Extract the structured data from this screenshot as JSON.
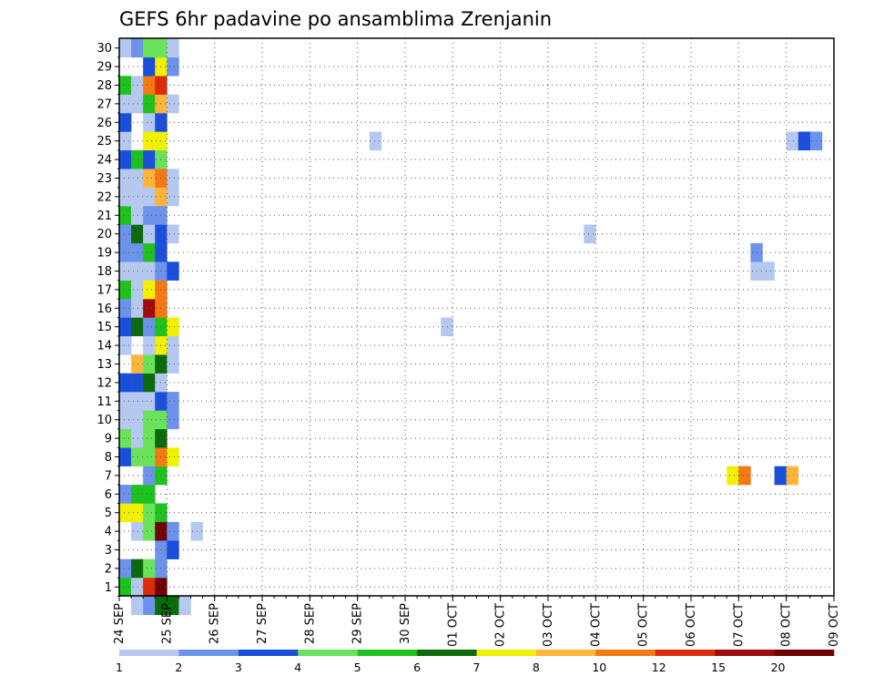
{
  "chart_data": {
    "type": "heatmap",
    "title": "GEFS 6hr padavine po ansamblima Zrenjanin",
    "xlabel": "",
    "ylabel": "",
    "x_start": "24 SEP",
    "x_step_hours": 6,
    "x_tick_labels": [
      "24 SEP",
      "25 SEP",
      "26 SEP",
      "27 SEP",
      "28 SEP",
      "29 SEP",
      "30 SEP",
      "01 OCT",
      "02 OCT",
      "03 OCT",
      "04 OCT",
      "05 OCT",
      "06 OCT",
      "07 OCT",
      "08 OCT",
      "09 OCT"
    ],
    "y_tick_labels": [
      "1",
      "2",
      "3",
      "4",
      "5",
      "6",
      "7",
      "8",
      "9",
      "10",
      "11",
      "12",
      "13",
      "14",
      "15",
      "16",
      "17",
      "18",
      "19",
      "20",
      "21",
      "22",
      "23",
      "24",
      "25",
      "26",
      "27",
      "28",
      "29",
      "30"
    ],
    "y_range": [
      0,
      30
    ],
    "grid": true,
    "legend": {
      "placement": "bottom",
      "thresholds": [
        "1",
        "2",
        "3",
        "4",
        "5",
        "6",
        "7",
        "8",
        "10",
        "12",
        "15",
        "20"
      ],
      "colors": [
        "#b4c8f0",
        "#6c92ec",
        "#1a4fdc",
        "#6ae25a",
        "#1ec11e",
        "#0b6a0b",
        "#f0f000",
        "#ffb43c",
        "#f47814",
        "#dc2a0a",
        "#a00a0a",
        "#6e0000"
      ]
    },
    "cells": [
      {
        "ens": 0,
        "t": 1,
        "c": 1
      },
      {
        "ens": 0,
        "t": 2,
        "c": 2
      },
      {
        "ens": 0,
        "t": 3,
        "c": 6
      },
      {
        "ens": 0,
        "t": 4,
        "c": 6
      },
      {
        "ens": 0,
        "t": 5,
        "c": 1
      },
      {
        "ens": 1,
        "t": 0,
        "c": 5
      },
      {
        "ens": 1,
        "t": 1,
        "c": 1
      },
      {
        "ens": 1,
        "t": 2,
        "c": 10
      },
      {
        "ens": 1,
        "t": 3,
        "c": 12
      },
      {
        "ens": 2,
        "t": 0,
        "c": 2
      },
      {
        "ens": 2,
        "t": 1,
        "c": 6
      },
      {
        "ens": 2,
        "t": 2,
        "c": 4
      },
      {
        "ens": 2,
        "t": 3,
        "c": 2
      },
      {
        "ens": 3,
        "t": 3,
        "c": 2
      },
      {
        "ens": 3,
        "t": 4,
        "c": 3
      },
      {
        "ens": 4,
        "t": 1,
        "c": 1
      },
      {
        "ens": 4,
        "t": 2,
        "c": 4
      },
      {
        "ens": 4,
        "t": 3,
        "c": 12
      },
      {
        "ens": 4,
        "t": 4,
        "c": 2
      },
      {
        "ens": 4,
        "t": 6,
        "c": 1
      },
      {
        "ens": 5,
        "t": 0,
        "c": 7
      },
      {
        "ens": 5,
        "t": 1,
        "c": 7
      },
      {
        "ens": 5,
        "t": 2,
        "c": 4
      },
      {
        "ens": 5,
        "t": 3,
        "c": 5
      },
      {
        "ens": 6,
        "t": 0,
        "c": 2
      },
      {
        "ens": 6,
        "t": 1,
        "c": 5
      },
      {
        "ens": 6,
        "t": 2,
        "c": 5
      },
      {
        "ens": 7,
        "t": 2,
        "c": 2
      },
      {
        "ens": 7,
        "t": 3,
        "c": 5
      },
      {
        "ens": 7,
        "t": 51,
        "c": 7
      },
      {
        "ens": 7,
        "t": 52,
        "c": 9
      },
      {
        "ens": 7,
        "t": 55,
        "c": 3
      },
      {
        "ens": 7,
        "t": 56,
        "c": 8
      },
      {
        "ens": 8,
        "t": 0,
        "c": 3
      },
      {
        "ens": 8,
        "t": 1,
        "c": 4
      },
      {
        "ens": 8,
        "t": 2,
        "c": 4
      },
      {
        "ens": 8,
        "t": 3,
        "c": 9
      },
      {
        "ens": 8,
        "t": 4,
        "c": 7
      },
      {
        "ens": 9,
        "t": 0,
        "c": 4
      },
      {
        "ens": 9,
        "t": 1,
        "c": 1
      },
      {
        "ens": 9,
        "t": 2,
        "c": 4
      },
      {
        "ens": 9,
        "t": 3,
        "c": 6
      },
      {
        "ens": 10,
        "t": 0,
        "c": 1
      },
      {
        "ens": 10,
        "t": 1,
        "c": 1
      },
      {
        "ens": 10,
        "t": 2,
        "c": 4
      },
      {
        "ens": 10,
        "t": 3,
        "c": 4
      },
      {
        "ens": 10,
        "t": 4,
        "c": 2
      },
      {
        "ens": 11,
        "t": 0,
        "c": 1
      },
      {
        "ens": 11,
        "t": 1,
        "c": 1
      },
      {
        "ens": 11,
        "t": 2,
        "c": 1
      },
      {
        "ens": 11,
        "t": 3,
        "c": 3
      },
      {
        "ens": 11,
        "t": 4,
        "c": 2
      },
      {
        "ens": 12,
        "t": 0,
        "c": 3
      },
      {
        "ens": 12,
        "t": 1,
        "c": 3
      },
      {
        "ens": 12,
        "t": 2,
        "c": 6
      },
      {
        "ens": 12,
        "t": 3,
        "c": 1
      },
      {
        "ens": 13,
        "t": 1,
        "c": 8
      },
      {
        "ens": 13,
        "t": 2,
        "c": 4
      },
      {
        "ens": 13,
        "t": 3,
        "c": 6
      },
      {
        "ens": 13,
        "t": 4,
        "c": 1
      },
      {
        "ens": 14,
        "t": 0,
        "c": 1
      },
      {
        "ens": 14,
        "t": 2,
        "c": 1
      },
      {
        "ens": 14,
        "t": 3,
        "c": 7
      },
      {
        "ens": 14,
        "t": 4,
        "c": 1
      },
      {
        "ens": 15,
        "t": 0,
        "c": 3
      },
      {
        "ens": 15,
        "t": 1,
        "c": 6
      },
      {
        "ens": 15,
        "t": 2,
        "c": 2
      },
      {
        "ens": 15,
        "t": 3,
        "c": 5
      },
      {
        "ens": 15,
        "t": 4,
        "c": 7
      },
      {
        "ens": 15,
        "t": 27,
        "c": 1
      },
      {
        "ens": 16,
        "t": 0,
        "c": 2
      },
      {
        "ens": 16,
        "t": 1,
        "c": 1
      },
      {
        "ens": 16,
        "t": 2,
        "c": 11
      },
      {
        "ens": 16,
        "t": 3,
        "c": 9
      },
      {
        "ens": 17,
        "t": 0,
        "c": 5
      },
      {
        "ens": 17,
        "t": 1,
        "c": 1
      },
      {
        "ens": 17,
        "t": 2,
        "c": 7
      },
      {
        "ens": 17,
        "t": 3,
        "c": 9
      },
      {
        "ens": 18,
        "t": 0,
        "c": 1
      },
      {
        "ens": 18,
        "t": 1,
        "c": 1
      },
      {
        "ens": 18,
        "t": 2,
        "c": 1
      },
      {
        "ens": 18,
        "t": 3,
        "c": 2
      },
      {
        "ens": 18,
        "t": 4,
        "c": 3
      },
      {
        "ens": 18,
        "t": 53,
        "c": 1
      },
      {
        "ens": 18,
        "t": 54,
        "c": 1
      },
      {
        "ens": 19,
        "t": 0,
        "c": 2
      },
      {
        "ens": 19,
        "t": 1,
        "c": 2
      },
      {
        "ens": 19,
        "t": 2,
        "c": 5
      },
      {
        "ens": 19,
        "t": 3,
        "c": 3
      },
      {
        "ens": 19,
        "t": 53,
        "c": 2
      },
      {
        "ens": 20,
        "t": 0,
        "c": 2
      },
      {
        "ens": 20,
        "t": 1,
        "c": 6
      },
      {
        "ens": 20,
        "t": 2,
        "c": 1
      },
      {
        "ens": 20,
        "t": 3,
        "c": 3
      },
      {
        "ens": 20,
        "t": 4,
        "c": 1
      },
      {
        "ens": 20,
        "t": 39,
        "c": 1
      },
      {
        "ens": 21,
        "t": 0,
        "c": 5
      },
      {
        "ens": 21,
        "t": 1,
        "c": 1
      },
      {
        "ens": 21,
        "t": 2,
        "c": 2
      },
      {
        "ens": 21,
        "t": 3,
        "c": 2
      },
      {
        "ens": 22,
        "t": 0,
        "c": 1
      },
      {
        "ens": 22,
        "t": 1,
        "c": 1
      },
      {
        "ens": 22,
        "t": 2,
        "c": 1
      },
      {
        "ens": 22,
        "t": 3,
        "c": 8
      },
      {
        "ens": 22,
        "t": 4,
        "c": 1
      },
      {
        "ens": 23,
        "t": 0,
        "c": 1
      },
      {
        "ens": 23,
        "t": 1,
        "c": 1
      },
      {
        "ens": 23,
        "t": 2,
        "c": 8
      },
      {
        "ens": 23,
        "t": 3,
        "c": 9
      },
      {
        "ens": 23,
        "t": 4,
        "c": 1
      },
      {
        "ens": 24,
        "t": 0,
        "c": 3
      },
      {
        "ens": 24,
        "t": 1,
        "c": 5
      },
      {
        "ens": 24,
        "t": 2,
        "c": 3
      },
      {
        "ens": 24,
        "t": 3,
        "c": 4
      },
      {
        "ens": 25,
        "t": 0,
        "c": 1
      },
      {
        "ens": 25,
        "t": 2,
        "c": 7
      },
      {
        "ens": 25,
        "t": 3,
        "c": 7
      },
      {
        "ens": 25,
        "t": 21,
        "c": 1
      },
      {
        "ens": 25,
        "t": 56,
        "c": 1
      },
      {
        "ens": 25,
        "t": 57,
        "c": 3
      },
      {
        "ens": 25,
        "t": 58,
        "c": 2
      },
      {
        "ens": 26,
        "t": 0,
        "c": 3
      },
      {
        "ens": 26,
        "t": 2,
        "c": 1
      },
      {
        "ens": 26,
        "t": 3,
        "c": 3
      },
      {
        "ens": 27,
        "t": 0,
        "c": 1
      },
      {
        "ens": 27,
        "t": 1,
        "c": 1
      },
      {
        "ens": 27,
        "t": 2,
        "c": 5
      },
      {
        "ens": 27,
        "t": 3,
        "c": 8
      },
      {
        "ens": 27,
        "t": 4,
        "c": 1
      },
      {
        "ens": 28,
        "t": 0,
        "c": 5
      },
      {
        "ens": 28,
        "t": 1,
        "c": 1
      },
      {
        "ens": 28,
        "t": 2,
        "c": 9
      },
      {
        "ens": 28,
        "t": 3,
        "c": 10
      },
      {
        "ens": 29,
        "t": 2,
        "c": 3
      },
      {
        "ens": 29,
        "t": 3,
        "c": 7
      },
      {
        "ens": 29,
        "t": 4,
        "c": 2
      },
      {
        "ens": 30,
        "t": 0,
        "c": 1
      },
      {
        "ens": 30,
        "t": 1,
        "c": 2
      },
      {
        "ens": 30,
        "t": 2,
        "c": 4
      },
      {
        "ens": 30,
        "t": 3,
        "c": 4
      },
      {
        "ens": 30,
        "t": 4,
        "c": 1
      }
    ]
  }
}
